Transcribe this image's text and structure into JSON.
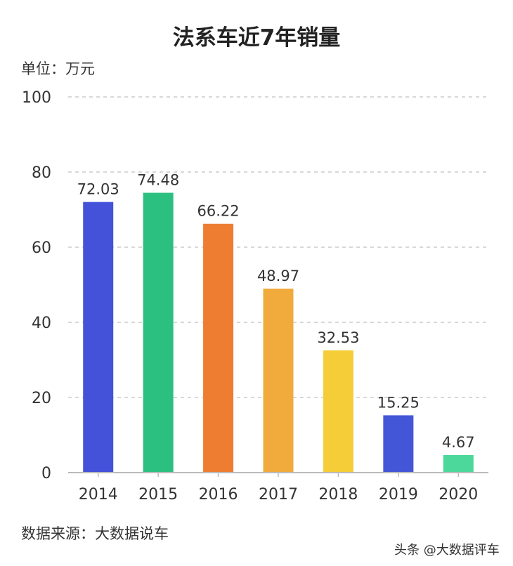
{
  "chart_data": {
    "type": "bar",
    "title": "法系车近7年销量",
    "unit_label": "单位：万元",
    "source": "数据来源：大数据说车",
    "categories": [
      "2014",
      "2015",
      "2016",
      "2017",
      "2018",
      "2019",
      "2020"
    ],
    "values": [
      72.03,
      74.48,
      66.22,
      48.97,
      32.53,
      15.25,
      4.67
    ],
    "value_labels": [
      "72.03",
      "74.48",
      "66.22",
      "48.97",
      "32.53",
      "15.25",
      "4.67"
    ],
    "colors": [
      "#4352d8",
      "#2bc07f",
      "#ee7d32",
      "#f0ab3c",
      "#f5cd38",
      "#4456d8",
      "#4bd89a"
    ],
    "ylim": [
      0,
      100
    ],
    "yticks": [
      "0",
      "20",
      "40",
      "60",
      "80",
      "100"
    ],
    "grid": true,
    "legend": "none"
  },
  "watermark": "头条 @大数据评车"
}
